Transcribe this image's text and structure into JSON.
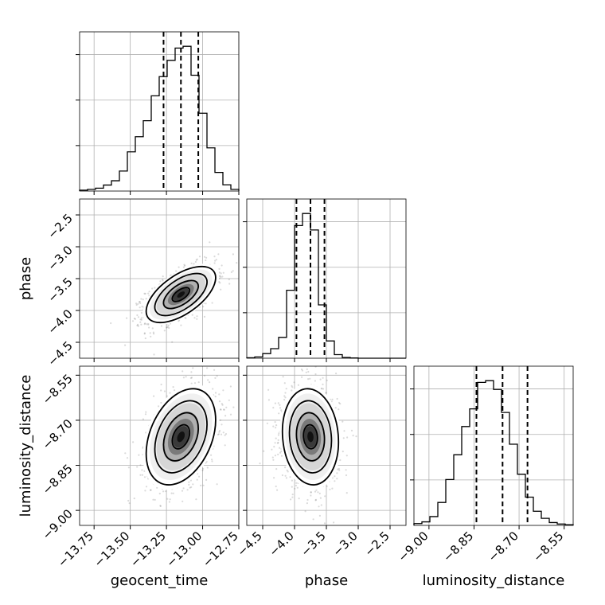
{
  "chart_data": {
    "type": "corner",
    "parameters": [
      {
        "name": "geocent_time",
        "label": "geocent_time",
        "range": [
          -13.85,
          -12.75
        ],
        "ticks": [
          "−13.75",
          "−13.50",
          "−13.25",
          "−13.00",
          "−12.75"
        ],
        "tick_values": [
          -13.75,
          -13.5,
          -13.25,
          -13.0,
          -12.75
        ],
        "quantiles": [
          -13.27,
          -13.15,
          -13.03
        ],
        "hist_counts": [
          0.3,
          0.6,
          1.0,
          2.1,
          3.6,
          7.0,
          13.7,
          19.0,
          24.6,
          33.3,
          40.0,
          45.7,
          50.0,
          50.6,
          40.5,
          27.2,
          15.1,
          6.5,
          2.2,
          0.6
        ]
      },
      {
        "name": "phase",
        "label": "phase",
        "range": [
          -4.75,
          -2.25
        ],
        "ticks": [
          "−4.5",
          "−4.0",
          "−3.5",
          "−3.0",
          "−2.5"
        ],
        "tick_values": [
          -4.5,
          -4.0,
          -3.5,
          -3.0,
          -2.5
        ],
        "quantiles": [
          -3.97,
          -3.75,
          -3.53
        ],
        "hist_counts": [
          0.2,
          0.5,
          1.8,
          3.7,
          8.1,
          26.4,
          51.5,
          56.2,
          49.8,
          20.7,
          6.7,
          1.4,
          0.3,
          0.1,
          0.0,
          0.0,
          0.0,
          0.0,
          0.0,
          0.0
        ]
      },
      {
        "name": "luminosity_distance",
        "label": "luminosity_distance",
        "range": [
          -9.05,
          -8.52
        ],
        "ticks": [
          "−9.00",
          "−8.85",
          "−8.70",
          "−8.55"
        ],
        "tick_values": [
          -9.0,
          -8.85,
          -8.7,
          -8.55
        ],
        "quantiles": [
          -8.842,
          -8.755,
          -8.672
        ],
        "hist_counts": [
          0.5,
          1.0,
          2.5,
          6.5,
          13.0,
          20.0,
          28.0,
          33.0,
          40.5,
          41.0,
          38.5,
          32.0,
          23.0,
          14.5,
          8.0,
          4.0,
          2.0,
          0.8,
          0.4,
          0.2
        ]
      }
    ],
    "pairs": [
      {
        "x_param": 0,
        "y_param": 1,
        "mean": [
          -13.15,
          -3.75
        ],
        "sd": [
          0.12,
          0.22
        ],
        "rho": 0.6
      },
      {
        "x_param": 0,
        "y_param": 2,
        "mean": [
          -13.15,
          -8.755
        ],
        "sd": [
          0.12,
          0.08
        ],
        "rho": 0.35
      },
      {
        "x_param": 1,
        "y_param": 2,
        "mean": [
          -3.75,
          -8.755
        ],
        "sd": [
          0.22,
          0.08
        ],
        "rho": -0.1
      }
    ],
    "contour_levels_sigma": [
      0.5,
      1.0,
      1.5,
      2.0
    ],
    "grid": true
  }
}
